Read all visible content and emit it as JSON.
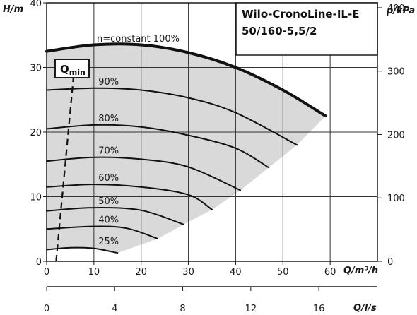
{
  "chart_data": {
    "type": "line",
    "title_lines": [
      "Wilo-CronoLine-IL-E",
      "50/160-5,5/2"
    ],
    "y_axis_label": "H/m",
    "y2_axis_label": "p/kPa",
    "x_axis_label": "Q/m³/h",
    "x2_axis_label": "Q/l/s",
    "xlim": [
      0,
      70
    ],
    "ylim": [
      0,
      40
    ],
    "x_ticks": [
      "0",
      "10",
      "20",
      "30",
      "40",
      "50",
      "60"
    ],
    "y_ticks": [
      "0",
      "10",
      "20",
      "30",
      "40"
    ],
    "y2_ticks": [
      "0",
      "100",
      "200",
      "300",
      "400"
    ],
    "x2_ticks": [
      "0",
      "4",
      "8",
      "12",
      "16"
    ],
    "qmin_label": "Q",
    "qmin_sub": "min",
    "qmin_line": {
      "x": [
        2,
        6
      ],
      "y": [
        0,
        31
      ]
    },
    "series": [
      {
        "name": "n=constant 100%",
        "label": "n=constant 100%",
        "bold": true,
        "x": [
          0,
          10,
          20,
          30,
          40,
          50,
          59
        ],
        "y": [
          32.5,
          33.5,
          33.5,
          32.3,
          30,
          26.5,
          22.5
        ]
      },
      {
        "name": "90%",
        "label": "90%",
        "x": [
          0,
          10,
          20,
          30,
          40,
          53
        ],
        "y": [
          26.5,
          26.8,
          26.5,
          25.3,
          23,
          18
        ]
      },
      {
        "name": "80%",
        "label": "80%",
        "x": [
          0,
          10,
          20,
          30,
          40,
          47
        ],
        "y": [
          20.5,
          21.1,
          20.8,
          19.5,
          17.5,
          14.5
        ]
      },
      {
        "name": "70%",
        "label": "70%",
        "x": [
          0,
          10,
          20,
          30,
          41
        ],
        "y": [
          15.5,
          16.1,
          15.8,
          14.6,
          11
        ]
      },
      {
        "name": "60%",
        "label": "60%",
        "x": [
          0,
          10,
          20,
          30,
          35
        ],
        "y": [
          11.5,
          11.9,
          11.5,
          10.3,
          8
        ]
      },
      {
        "name": "50%",
        "label": "50%",
        "x": [
          0,
          10,
          20,
          29
        ],
        "y": [
          7.8,
          8.3,
          7.9,
          5.7
        ]
      },
      {
        "name": "40%",
        "label": "40%",
        "x": [
          0,
          10,
          17,
          23.5
        ],
        "y": [
          5,
          5.4,
          5.1,
          3.5
        ]
      },
      {
        "name": "25%",
        "label": "25%",
        "x": [
          0,
          5,
          10,
          15
        ],
        "y": [
          1.8,
          2.1,
          2,
          1.3
        ]
      }
    ]
  }
}
